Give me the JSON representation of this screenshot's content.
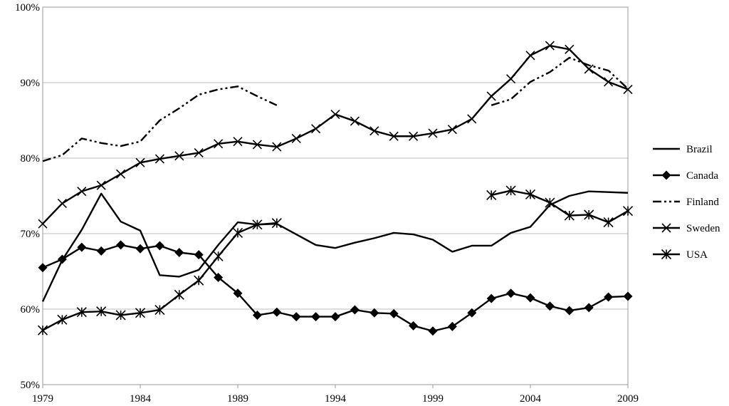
{
  "chart_data": {
    "type": "line",
    "title": "",
    "xlabel": "",
    "ylabel": "",
    "x": [
      1979,
      1980,
      1981,
      1982,
      1983,
      1984,
      1985,
      1986,
      1987,
      1988,
      1989,
      1990,
      1991,
      1992,
      1993,
      1994,
      1995,
      1996,
      1997,
      1998,
      1999,
      2000,
      2001,
      2002,
      2003,
      2004,
      2005,
      2006,
      2007,
      2008,
      2009
    ],
    "xlim": [
      1979,
      2009
    ],
    "ylim": [
      50,
      100
    ],
    "x_tick_values": [
      1979,
      1984,
      1989,
      1994,
      1999,
      2004,
      2009
    ],
    "x_tick_labels": [
      "1979",
      "1984",
      "1989",
      "1994",
      "1999",
      "2004",
      "2009"
    ],
    "y_tick_values": [
      50,
      60,
      70,
      80,
      90,
      100
    ],
    "y_tick_labels": [
      "50%",
      "60%",
      "70%",
      "80%",
      "90%",
      "100%"
    ],
    "grid": "horizontal",
    "legend_position": "right",
    "series": [
      {
        "name": "Brazil",
        "marker": "none",
        "dash": "solid",
        "values": [
          61.0,
          66.5,
          70.5,
          75.3,
          71.6,
          70.4,
          64.5,
          64.3,
          65.2,
          68.5,
          71.5,
          71.2,
          71.3,
          69.9,
          68.5,
          68.1,
          68.8,
          69.4,
          70.1,
          69.9,
          69.2,
          67.6,
          68.4,
          68.4,
          70.1,
          70.9,
          73.8,
          75.0,
          75.6,
          75.5,
          75.4
        ]
      },
      {
        "name": "Canada",
        "marker": "diamond",
        "dash": "solid",
        "values": [
          65.5,
          66.6,
          68.2,
          67.7,
          68.5,
          68.0,
          68.4,
          67.5,
          67.2,
          64.2,
          62.1,
          59.2,
          59.6,
          59.0,
          59.0,
          59.0,
          59.9,
          59.5,
          59.4,
          57.8,
          57.1,
          57.7,
          59.5,
          61.4,
          62.1,
          61.5,
          60.4,
          59.8,
          60.2,
          61.6,
          61.7
        ]
      },
      {
        "name": "Finland",
        "marker": "none",
        "dash": "dash-dot-dot",
        "values": [
          79.6,
          80.4,
          82.6,
          82.0,
          81.6,
          82.2,
          85.0,
          86.6,
          88.4,
          89.1,
          89.5,
          88.2,
          87.0,
          null,
          null,
          null,
          null,
          null,
          null,
          null,
          null,
          null,
          null,
          87.0,
          87.8,
          90.1,
          91.4,
          93.3,
          92.3,
          91.6,
          89.2
        ]
      },
      {
        "name": "Sweden",
        "marker": "x",
        "dash": "solid",
        "values": [
          71.3,
          74.0,
          75.6,
          76.4,
          77.9,
          79.4,
          79.9,
          80.3,
          80.7,
          81.9,
          82.2,
          81.8,
          81.5,
          82.6,
          83.9,
          85.8,
          84.9,
          83.6,
          82.9,
          82.9,
          83.3,
          83.8,
          85.2,
          88.2,
          90.5,
          93.6,
          94.9,
          94.4,
          91.8,
          90.1,
          89.1
        ]
      },
      {
        "name": "USA",
        "marker": "asterisk",
        "dash": "solid",
        "values": [
          57.2,
          58.6,
          59.6,
          59.7,
          59.2,
          59.5,
          59.9,
          61.9,
          63.8,
          67.0,
          70.1,
          71.2,
          71.4,
          null,
          null,
          null,
          null,
          null,
          null,
          null,
          null,
          null,
          null,
          75.1,
          75.7,
          75.2,
          74.1,
          72.4,
          72.5,
          71.5,
          73.0
        ]
      }
    ]
  }
}
